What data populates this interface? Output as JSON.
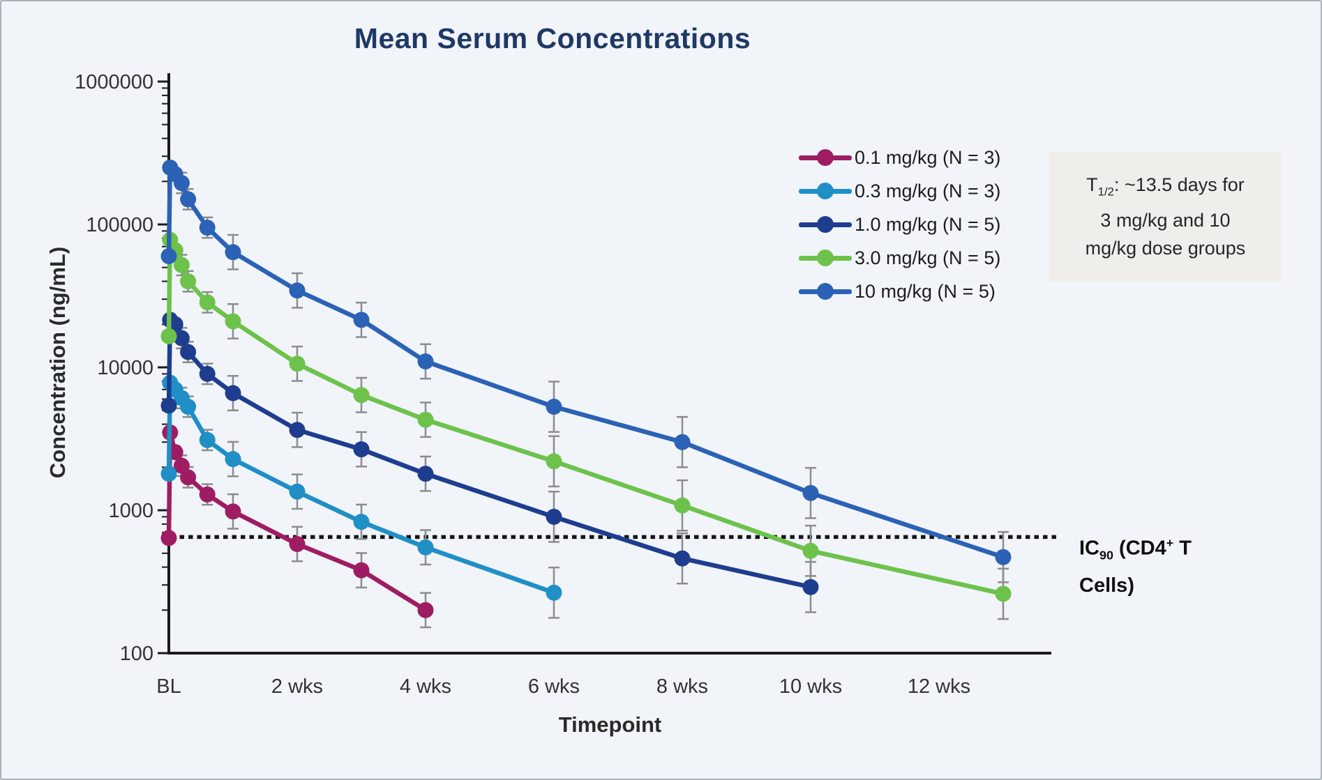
{
  "page": {
    "background": "#F1F4F9",
    "border_color": "#ACB2BB",
    "axis_color": "#1A1A1A",
    "tick_text_color": "#333333",
    "title_color": "#1F3866",
    "error_bar_color": "#8C8C8C",
    "reference_line_color": "#151515",
    "annotation_bg": "#F0EEEB"
  },
  "annotation": {
    "prefix": "T",
    "sub": "1/2",
    "line1_rest": ": ~13.5 days for",
    "line2": "3 mg/kg and 10",
    "line3": "mg/kg dose groups"
  },
  "ic90_label": {
    "prefix": "IC",
    "sub": "90",
    "mid": " (CD4",
    "sup": "+",
    "after": " T",
    "line2": "Cells)"
  },
  "chart_data": {
    "type": "line",
    "title": "Mean Serum Concentrations",
    "xlabel": "Timepoint",
    "ylabel": "Concentration (ng/mL)",
    "x_unit": "weeks",
    "y_scale": "log",
    "ylim": [
      100,
      1000000
    ],
    "y_ticks": [
      100,
      1000,
      10000,
      100000,
      1000000
    ],
    "x_ticks": [
      {
        "week": 0,
        "label": "BL"
      },
      {
        "week": 2,
        "label": "2 wks"
      },
      {
        "week": 4,
        "label": "4 wks"
      },
      {
        "week": 6,
        "label": "6 wks"
      },
      {
        "week": 8,
        "label": "8 wks"
      },
      {
        "week": 10,
        "label": "10 wks"
      },
      {
        "week": 12,
        "label": "12 wks"
      }
    ],
    "grid": false,
    "legend_position": "upper right",
    "reference_line": {
      "value": 650,
      "style": "dotted",
      "label": "IC90 (CD4+ T Cells)"
    },
    "error_bars": {
      "shown": true,
      "factor_early_weeks": 1.18,
      "factor_mid_weeks": 1.32,
      "factor_late_weeks": 1.5
    },
    "series": [
      {
        "name": "0.1 mg/kg (N = 3)",
        "dose_mg_kg": 0.1,
        "n": 3,
        "color": "#9E1D62",
        "points": [
          [
            0,
            640
          ],
          [
            0.02,
            3500
          ],
          [
            0.1,
            2550
          ],
          [
            0.2,
            2050
          ],
          [
            0.3,
            1700
          ],
          [
            0.6,
            1290
          ],
          [
            1,
            980
          ],
          [
            2,
            580
          ],
          [
            3,
            380
          ],
          [
            4,
            200
          ]
        ]
      },
      {
        "name": "0.3 mg/kg (N = 3)",
        "dose_mg_kg": 0.3,
        "n": 3,
        "color": "#1F8FC6",
        "points": [
          [
            0,
            1800
          ],
          [
            0.02,
            7800
          ],
          [
            0.1,
            7000
          ],
          [
            0.2,
            6100
          ],
          [
            0.3,
            5300
          ],
          [
            0.6,
            3100
          ],
          [
            1,
            2280
          ],
          [
            2,
            1350
          ],
          [
            3,
            830
          ],
          [
            4,
            550
          ],
          [
            6,
            265
          ]
        ]
      },
      {
        "name": "1.0 mg/kg (N = 5)",
        "dose_mg_kg": 1.0,
        "n": 5,
        "color": "#1E3D8F",
        "points": [
          [
            0,
            5400
          ],
          [
            0.02,
            21500
          ],
          [
            0.1,
            20000
          ],
          [
            0.2,
            16000
          ],
          [
            0.3,
            12800
          ],
          [
            0.6,
            9000
          ],
          [
            1,
            6600
          ],
          [
            2,
            3650
          ],
          [
            3,
            2670
          ],
          [
            4,
            1800
          ],
          [
            6,
            900
          ],
          [
            8,
            460
          ],
          [
            10,
            290
          ]
        ]
      },
      {
        "name": "3.0 mg/kg (N = 5)",
        "dose_mg_kg": 3.0,
        "n": 5,
        "color": "#6DC24B",
        "points": [
          [
            0,
            16500
          ],
          [
            0.02,
            78000
          ],
          [
            0.1,
            66000
          ],
          [
            0.2,
            52000
          ],
          [
            0.3,
            40000
          ],
          [
            0.6,
            28500
          ],
          [
            1,
            21000
          ],
          [
            2,
            10600
          ],
          [
            3,
            6400
          ],
          [
            4,
            4300
          ],
          [
            6,
            2200
          ],
          [
            8,
            1080
          ],
          [
            10,
            520
          ],
          [
            13,
            260
          ]
        ]
      },
      {
        "name": "10 mg/kg (N = 5)",
        "dose_mg_kg": 10,
        "n": 5,
        "color": "#2B62B5",
        "points": [
          [
            0,
            60000
          ],
          [
            0.02,
            250000
          ],
          [
            0.1,
            225000
          ],
          [
            0.2,
            195000
          ],
          [
            0.3,
            150000
          ],
          [
            0.6,
            95000
          ],
          [
            1,
            64000
          ],
          [
            2,
            34500
          ],
          [
            3,
            21500
          ],
          [
            4,
            11000
          ],
          [
            6,
            5300
          ],
          [
            8,
            3000
          ],
          [
            10,
            1320
          ],
          [
            13,
            470
          ]
        ]
      }
    ]
  }
}
